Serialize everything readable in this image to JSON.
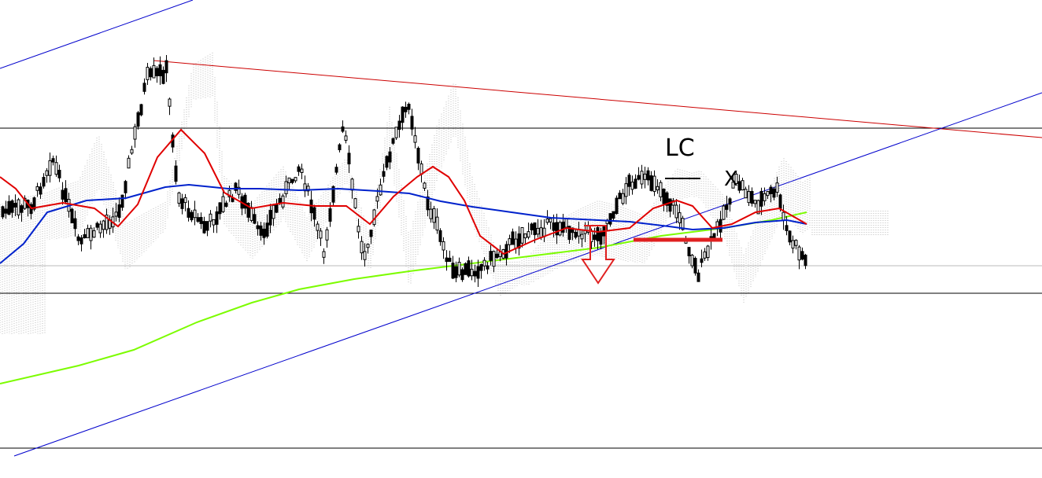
{
  "annotations": {
    "label": "LC",
    "mark": "X"
  }
}
